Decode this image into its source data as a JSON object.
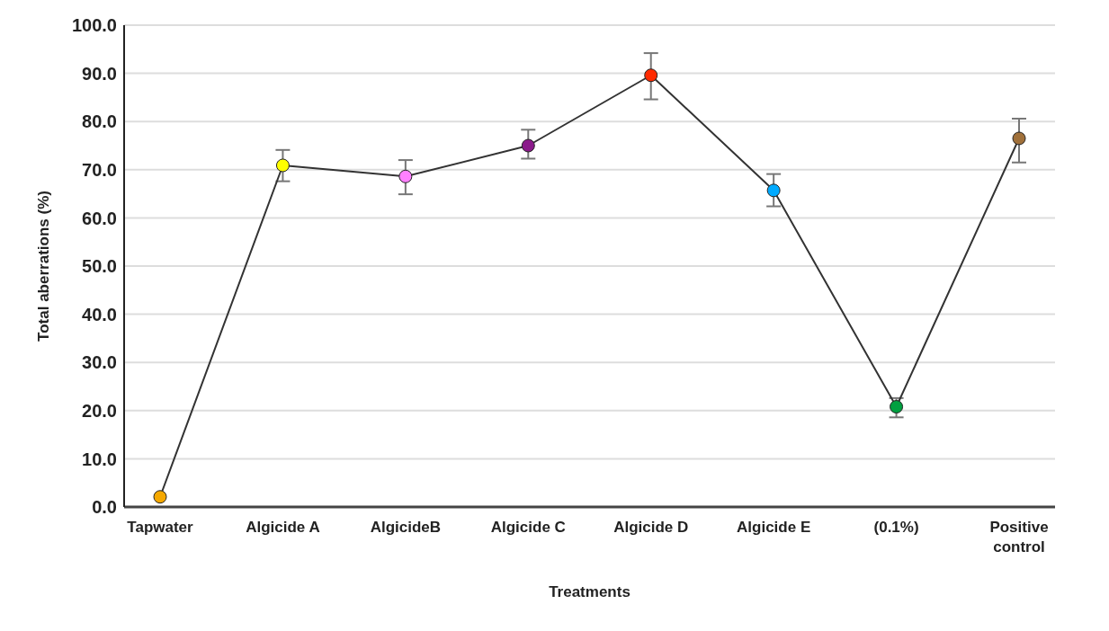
{
  "chart_data": {
    "type": "line",
    "xlabel": "Treatments",
    "ylabel": "Total aberrations (%)",
    "categories": [
      "Tapwater",
      "Algicide A",
      "AlgicideB",
      "Algicide C",
      "Algicide D",
      "Algicide E",
      "(0.1%)",
      "Positive control"
    ],
    "series": [
      {
        "color": "#333333",
        "colors": [
          "#f5a800",
          "#ffff00",
          "#ff80ff",
          "#8b1a8b",
          "#ff2a00",
          "#00aaff",
          "#00a040",
          "#a0703a"
        ],
        "values": [
          2.1,
          70.9,
          68.6,
          75.0,
          89.6,
          65.7,
          20.8,
          76.5
        ],
        "errors": [
          null,
          [
            67.6,
            74.1
          ],
          [
            64.9,
            72.0
          ],
          [
            72.3,
            78.3
          ],
          [
            84.6,
            94.2
          ],
          [
            62.4,
            69.1
          ],
          [
            18.6,
            22.6
          ],
          [
            71.5,
            80.6
          ]
        ]
      }
    ],
    "ylim": [
      0,
      100
    ],
    "yticks": [
      {
        "value": 0,
        "label": "0.0"
      },
      {
        "value": 10,
        "label": "10.0"
      },
      {
        "value": 20,
        "label": "20.0"
      },
      {
        "value": 30,
        "label": "30.0"
      },
      {
        "value": 40,
        "label": "40.0"
      },
      {
        "value": 50,
        "label": "50.0"
      },
      {
        "value": 60,
        "label": "60.0"
      },
      {
        "value": 70,
        "label": "70.0"
      },
      {
        "value": 80,
        "label": "80.0"
      },
      {
        "value": 90,
        "label": "90.0"
      },
      {
        "value": 100,
        "label": "100.0"
      }
    ],
    "grid": "y",
    "marker": "circle",
    "line_style": "solid"
  }
}
